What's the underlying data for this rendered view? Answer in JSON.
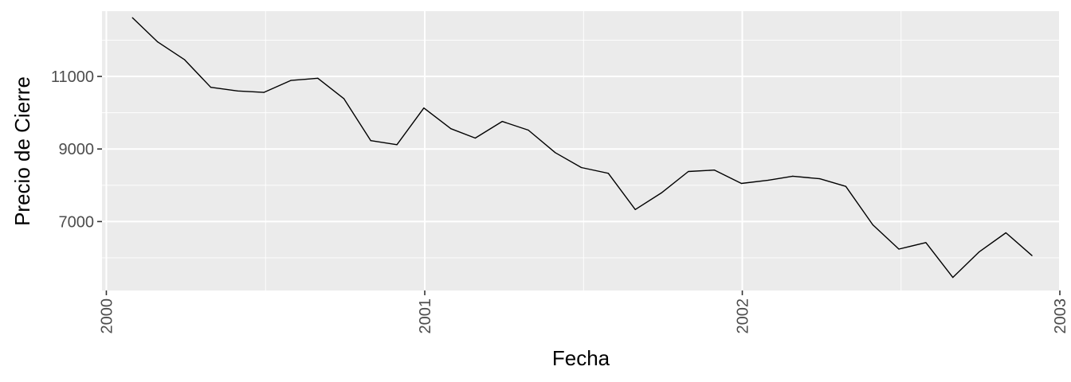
{
  "chart_data": {
    "type": "line",
    "title": "",
    "xlabel": "Fecha",
    "ylabel": "Precio de Cierre",
    "x_ticks": [
      "2000",
      "2001",
      "2002",
      "2003"
    ],
    "y_ticks": [
      7000,
      9000,
      11000
    ],
    "xlim": [
      "1999-12-27",
      "2003-01-01"
    ],
    "ylim": [
      5100,
      12800
    ],
    "grid": true,
    "legend": "none",
    "colors": {
      "panel": "#ebebeb",
      "grid": "#ffffff",
      "line": "#000000"
    },
    "series": [
      {
        "x": [
          "2000-01-31",
          "2000-02-29",
          "2000-03-31",
          "2000-04-30",
          "2000-05-31",
          "2000-06-30",
          "2000-07-31",
          "2000-08-31",
          "2000-09-30",
          "2000-10-31",
          "2000-11-30",
          "2000-12-31",
          "2001-01-31",
          "2001-02-28",
          "2001-03-31",
          "2001-04-30",
          "2001-05-31",
          "2001-06-30",
          "2001-07-31",
          "2001-08-31",
          "2001-09-30",
          "2001-10-31",
          "2001-11-30",
          "2001-12-31",
          "2002-01-31",
          "2002-02-28",
          "2002-03-31",
          "2002-04-30",
          "2002-05-31",
          "2002-06-30",
          "2002-07-31",
          "2002-08-31",
          "2002-09-30",
          "2002-10-31",
          "2002-11-30"
        ],
        "y": [
          12620,
          11950,
          11460,
          10700,
          10600,
          10560,
          10890,
          10950,
          10390,
          9230,
          9120,
          10130,
          9560,
          9300,
          9760,
          9520,
          8900,
          8490,
          8330,
          7330,
          7790,
          8380,
          8420,
          8050,
          8140,
          8250,
          8180,
          7970,
          6910,
          6240,
          6420,
          5460,
          6160,
          6690,
          6060
        ]
      }
    ]
  }
}
